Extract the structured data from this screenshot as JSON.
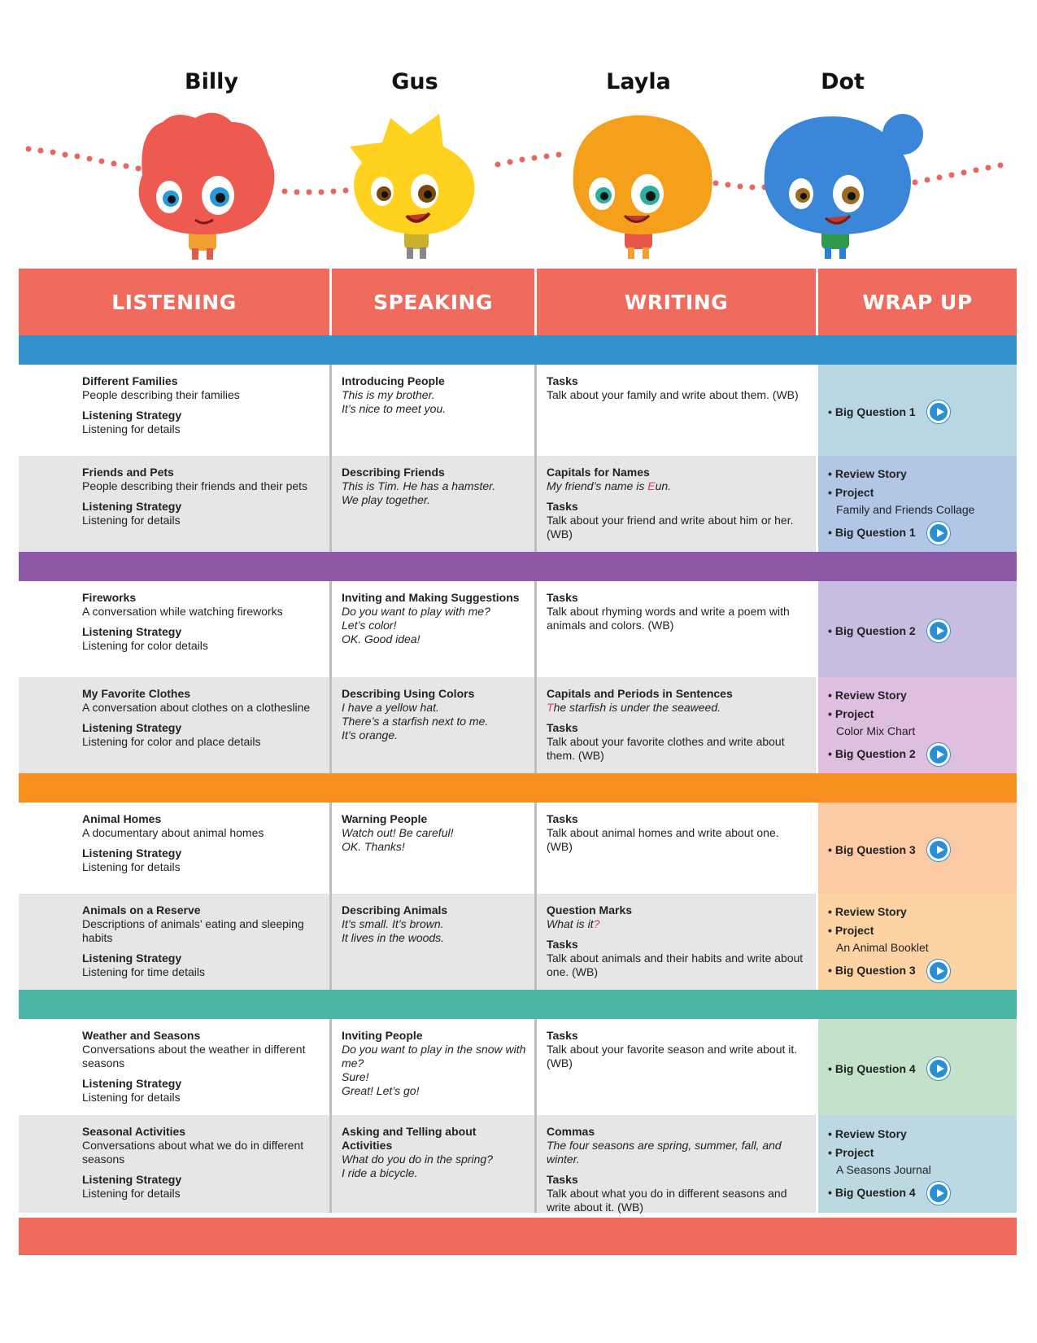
{
  "characters": [
    "Billy",
    "Gus",
    "Layla",
    "Dot"
  ],
  "headers": [
    "LISTENING",
    "SPEAKING",
    "WRITING",
    "WRAP UP"
  ],
  "colors": {
    "header": "#ef6b5e",
    "units": [
      "#3390cc",
      "#8e5aa8",
      "#f7901e",
      "#4db5a5"
    ],
    "wrapup": [
      [
        "#b9d6e3",
        "#b2c7e6"
      ],
      [
        "#c8bde0",
        "#dfbfe0"
      ],
      [
        "#fcc9a5",
        "#fdd3a4"
      ],
      [
        "#c3e2c9",
        "#bcd8e2"
      ]
    ]
  },
  "icons": {
    "play": "play-circle-icon",
    "billy": "red-hand-mascot",
    "gus": "yellow-star-mascot",
    "layla": "orange-mascot",
    "dot": "blue-mascot"
  },
  "units": [
    {
      "rows": [
        {
          "listening": {
            "title": "Different Families",
            "desc": "People describing their families",
            "strategy_label": "Listening Strategy",
            "strategy": "Listening for details"
          },
          "speaking": {
            "title": "Introducing People",
            "lines": [
              "This is my brother.",
              "It’s nice to meet you."
            ]
          },
          "writing": {
            "tasks_label": "Tasks",
            "tasks": "Talk about your family and write about them. (WB)"
          },
          "wrapup": {
            "big_question": "Big Question 1"
          }
        },
        {
          "listening": {
            "title": "Friends and Pets",
            "desc": "People describing their friends and their pets",
            "strategy_label": "Listening Strategy",
            "strategy": "Listening for details"
          },
          "speaking": {
            "title": "Describing Friends",
            "lines": [
              "This is Tim. He has a hamster.",
              "We play together."
            ]
          },
          "writing": {
            "title": "Capitals for Names",
            "example_pre": "My friend’s name is ",
            "example_hl": "E",
            "example_post": "un.",
            "tasks_label": "Tasks",
            "tasks": "Talk about your friend and write about him or her. (WB)"
          },
          "wrapup": {
            "review": "Review Story",
            "project_label": "Project",
            "project": "Family and Friends Collage",
            "big_question": "Big Question 1"
          }
        }
      ]
    },
    {
      "rows": [
        {
          "listening": {
            "title": "Fireworks",
            "desc": "A conversation while watching fireworks",
            "strategy_label": "Listening Strategy",
            "strategy": "Listening for color details"
          },
          "speaking": {
            "title": "Inviting and Making Suggestions",
            "lines": [
              "Do you want to play with me?",
              "Let’s color!",
              "OK. Good idea!"
            ]
          },
          "writing": {
            "tasks_label": "Tasks",
            "tasks": "Talk about rhyming words and write a poem with animals and colors. (WB)"
          },
          "wrapup": {
            "big_question": "Big Question 2"
          }
        },
        {
          "listening": {
            "title": "My Favorite Clothes",
            "desc": "A conversation about clothes on a clothesline",
            "strategy_label": "Listening Strategy",
            "strategy": "Listening for color and place details"
          },
          "speaking": {
            "title": "Describing Using Colors",
            "lines": [
              "I have a yellow hat.",
              "There’s a starfish next to me.",
              "It’s orange."
            ]
          },
          "writing": {
            "title": "Capitals and Periods in Sentences",
            "example_pre": "",
            "example_hl": "T",
            "example_post": "he starfish is under the seaweed.",
            "tasks_label": "Tasks",
            "tasks": "Talk about your favorite clothes and write about them. (WB)"
          },
          "wrapup": {
            "review": "Review Story",
            "project_label": "Project",
            "project": "Color Mix Chart",
            "big_question": "Big Question 2"
          }
        }
      ]
    },
    {
      "rows": [
        {
          "listening": {
            "title": "Animal Homes",
            "desc": "A documentary about animal homes",
            "strategy_label": "Listening Strategy",
            "strategy": "Listening for details"
          },
          "speaking": {
            "title": "Warning People",
            "lines": [
              "Watch out! Be careful!",
              "OK. Thanks!"
            ]
          },
          "writing": {
            "tasks_label": "Tasks",
            "tasks": "Talk about animal homes and write about one. (WB)"
          },
          "wrapup": {
            "big_question": "Big Question 3"
          }
        },
        {
          "listening": {
            "title": "Animals on a Reserve",
            "desc": "Descriptions of animals’ eating and sleeping habits",
            "strategy_label": "Listening Strategy",
            "strategy": "Listening for time details"
          },
          "speaking": {
            "title": "Describing Animals",
            "lines": [
              "It’s small. It’s brown.",
              "It lives in the woods."
            ]
          },
          "writing": {
            "title": "Question Marks",
            "example_pre": "What is it",
            "example_hl": "?",
            "example_post": "",
            "tasks_label": "Tasks",
            "tasks": "Talk about animals and their habits and write about one. (WB)"
          },
          "wrapup": {
            "review": "Review Story",
            "project_label": "Project",
            "project": "An Animal Booklet",
            "big_question": "Big Question 3"
          }
        }
      ]
    },
    {
      "rows": [
        {
          "listening": {
            "title": "Weather and Seasons",
            "desc": "Conversations about the weather in different seasons",
            "strategy_label": "Listening Strategy",
            "strategy": "Listening for details"
          },
          "speaking": {
            "title": "Inviting People",
            "lines": [
              "Do you want to play in the snow with me?",
              "Sure!",
              "Great! Let’s go!"
            ]
          },
          "writing": {
            "tasks_label": "Tasks",
            "tasks": "Talk about your favorite season and write about it. (WB)"
          },
          "wrapup": {
            "big_question": "Big Question 4"
          }
        },
        {
          "listening": {
            "title": "Seasonal Activities",
            "desc": "Conversations about what we do in different seasons",
            "strategy_label": "Listening Strategy",
            "strategy": "Listening for details"
          },
          "speaking": {
            "title": "Asking and Telling about Activities",
            "lines": [
              "What do you do in the spring?",
              "I ride a bicycle."
            ]
          },
          "writing": {
            "title": "Commas",
            "example_pre": "The four seasons are spring, summer, fall, and winter.",
            "example_hl": "",
            "example_post": "",
            "tasks_label": "Tasks",
            "tasks": "Talk about what you do in different seasons and write about it. (WB)"
          },
          "wrapup": {
            "review": "Review Story",
            "project_label": "Project",
            "project": "A Seasons Journal",
            "big_question": "Big Question 4"
          }
        }
      ]
    }
  ]
}
